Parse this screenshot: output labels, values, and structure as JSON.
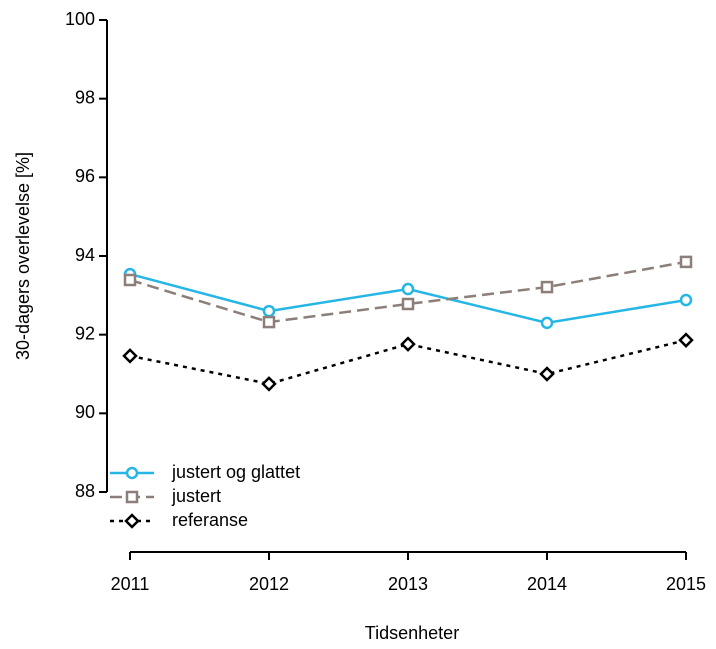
{
  "chart_data": {
    "type": "line",
    "x_label": "Tidsenheter",
    "y_label": "30-dagers overlevelse [%]",
    "categories": [
      "2011",
      "2012",
      "2013",
      "2014",
      "2015"
    ],
    "series": [
      {
        "name": "justert og glattet",
        "color": "#25b6e6",
        "dash": "solid",
        "marker": "circle",
        "values": [
          93.54,
          92.6,
          93.16,
          92.3,
          92.88
        ]
      },
      {
        "name": "justert",
        "color": "#8c7f79",
        "dash": "dashed",
        "marker": "square",
        "values": [
          93.39,
          92.32,
          92.78,
          93.21,
          93.85
        ]
      },
      {
        "name": "referanse",
        "color": "#000000",
        "dash": "dotted",
        "marker": "diamond",
        "values": [
          91.46,
          90.75,
          91.76,
          91.0,
          91.86
        ]
      }
    ],
    "ylim": [
      88,
      100
    ],
    "yticks": [
      88,
      90,
      92,
      94,
      96,
      98,
      100
    ],
    "legend": "bottom-left",
    "grid": false
  }
}
